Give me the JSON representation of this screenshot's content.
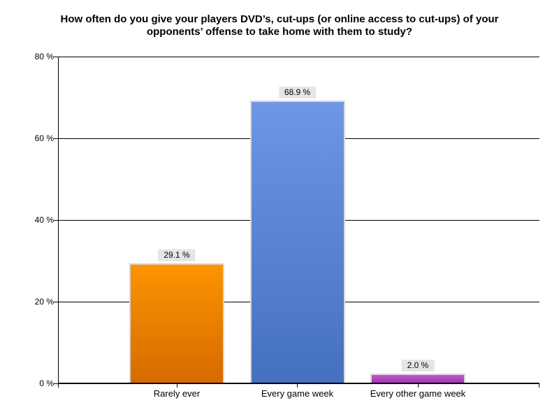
{
  "title": {
    "lines": [
      "How often do you give your players DVD’s, cut-ups (or online access to cut-ups) of your",
      "opponents’ offense to take home with them to study?"
    ]
  },
  "chart_data": {
    "type": "bar",
    "title": "How often do you give your players DVD’s, cut-ups (or online access to cut-ups) of your opponents’ offense to take home with them to study?",
    "categories": [
      "Rarely ever",
      "Every game week",
      "Every other game week"
    ],
    "values": [
      29.1,
      68.9,
      2.0
    ],
    "value_labels": [
      "29.1 %",
      "68.9 %",
      "2.0 %"
    ],
    "xlabel": "",
    "ylabel": "",
    "ylim": [
      0,
      80
    ],
    "yticks": [
      0,
      20,
      40,
      60,
      80
    ],
    "ytick_labels": [
      "0 %",
      "20 %",
      "40 %",
      "60 %",
      "80 %"
    ],
    "grid": true,
    "legend": "none",
    "bar_styles": [
      {
        "gradient_top": "#FC9400",
        "gradient_bottom": "#D66A00"
      },
      {
        "gradient_top": "#7096E6",
        "gradient_bottom": "#4470C0"
      },
      {
        "gradient_top": "#C158CD",
        "gradient_bottom": "#A030AE"
      }
    ],
    "bar_border_color": "#D9D9D9",
    "value_box_bg": "#E5E5E5",
    "axis_color": "#000000",
    "grid_color": "#000000",
    "background": "#FFFFFF"
  }
}
